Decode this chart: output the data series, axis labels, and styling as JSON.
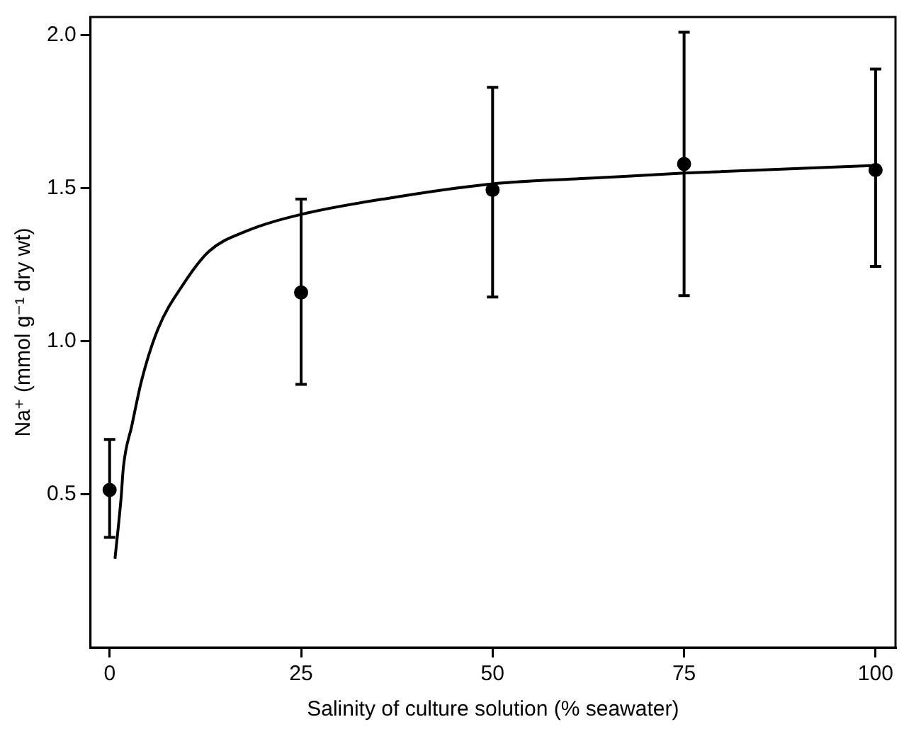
{
  "chart_data": {
    "type": "scatter",
    "xlabel": "Salinity of culture solution (% seawater)",
    "ylabel": "Na⁺ (mmol g⁻¹ dry wt)",
    "x": [
      0,
      25,
      50,
      75,
      100
    ],
    "series": [
      {
        "type": "scatter",
        "color": "#000000",
        "marker": "circle",
        "values": [
          0.515,
          1.16,
          1.495,
          1.58,
          1.56
        ],
        "errors": [
          [
            0.36,
            0.68
          ],
          [
            0.86,
            1.465
          ],
          [
            1.145,
            1.83
          ],
          [
            1.15,
            2.01
          ],
          [
            1.245,
            1.89
          ]
        ]
      },
      {
        "type": "line",
        "color": "#000000",
        "marker": "none",
        "x": [
          0.7,
          1.5,
          1.8,
          2.9,
          4.2,
          6.3,
          9.7,
          13,
          17.8,
          25,
          36.9,
          50,
          64,
          75,
          100
        ],
        "values": [
          0.29,
          0.49,
          0.59,
          0.725,
          0.875,
          1.04,
          1.19,
          1.295,
          1.36,
          1.415,
          1.47,
          1.515,
          1.535,
          1.55,
          1.575
        ]
      }
    ],
    "xlim": [
      -2.5,
      102.6
    ],
    "ylim": [
      0,
      2.06
    ],
    "xticks": [
      0,
      25,
      50,
      75,
      100
    ],
    "yticks": [
      {
        "value": 0.5,
        "label": "0.5"
      },
      {
        "value": 1,
        "label": "1.0"
      },
      {
        "value": 1.5,
        "label": "1.5"
      },
      {
        "value": 2,
        "label": "2.0"
      }
    ],
    "grid": false,
    "legend": false
  }
}
